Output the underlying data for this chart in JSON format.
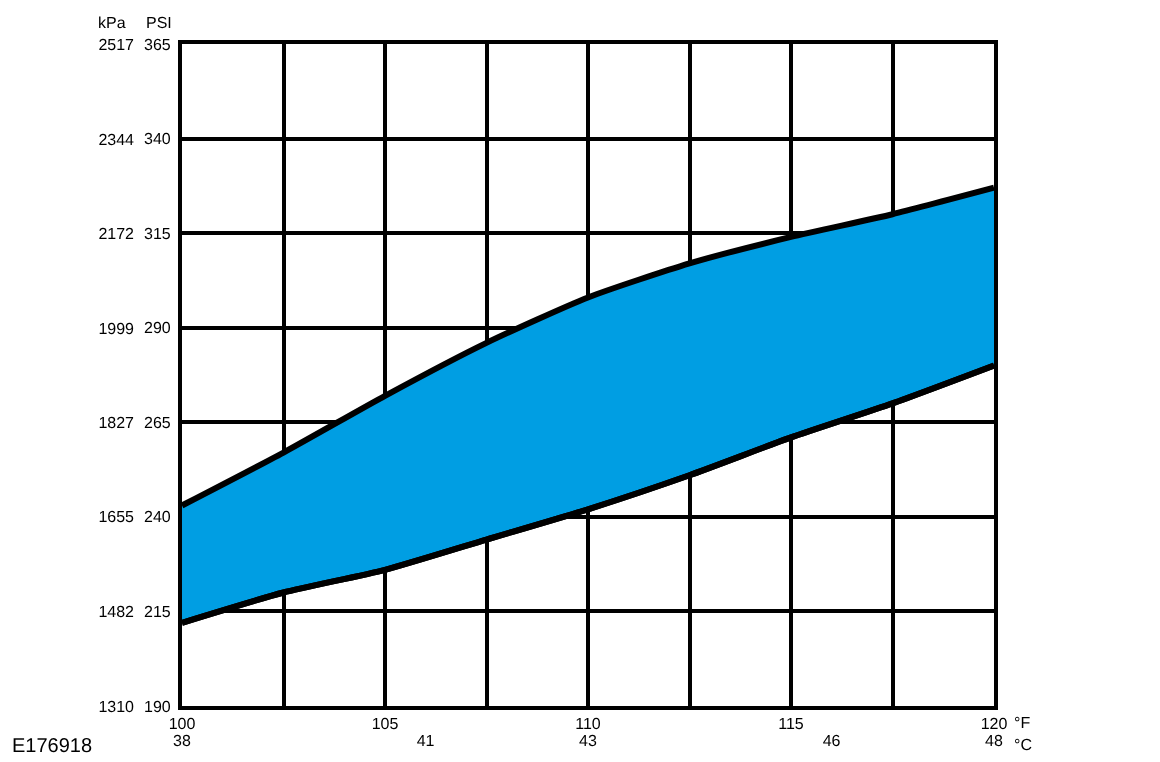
{
  "chart_data": {
    "type": "line",
    "x": [
      100,
      102.5,
      105,
      107.5,
      110,
      112.5,
      115,
      117.5,
      120
    ],
    "series": [
      {
        "type": "line",
        "color": "#000000",
        "values": [
          212,
          220,
          226,
          234,
          242,
          251,
          261,
          270,
          280
        ]
      },
      {
        "type": "area",
        "color": "#009ee3",
        "values": [
          243,
          257,
          272,
          286,
          298,
          307,
          314,
          320,
          327
        ]
      }
    ],
    "xlim": [
      100,
      120
    ],
    "xticks": [
      100,
      {
        "value": 102.5,
        "label": null
      },
      105,
      {
        "value": 107.5,
        "label": null
      },
      110,
      {
        "value": 112.5,
        "label": null
      },
      115,
      {
        "value": 117.5,
        "label": null
      },
      120
    ],
    "xlabel": "°F",
    "x2lim": [
      38,
      48
    ],
    "x2ticks": [
      38,
      41,
      43,
      46,
      48
    ],
    "x2label": "°C",
    "ylim": [
      190,
      365
    ],
    "yticks": [
      190,
      215,
      240,
      265,
      290,
      315,
      340,
      365
    ],
    "ylabel": "PSI",
    "y2lim": [
      1310,
      2517
    ],
    "y2ticks": [
      1310,
      1482,
      1655,
      1827,
      1999,
      2172,
      2344,
      2517
    ],
    "y2label": "kPa",
    "grid": true,
    "annotations": [
      "E176918"
    ]
  }
}
